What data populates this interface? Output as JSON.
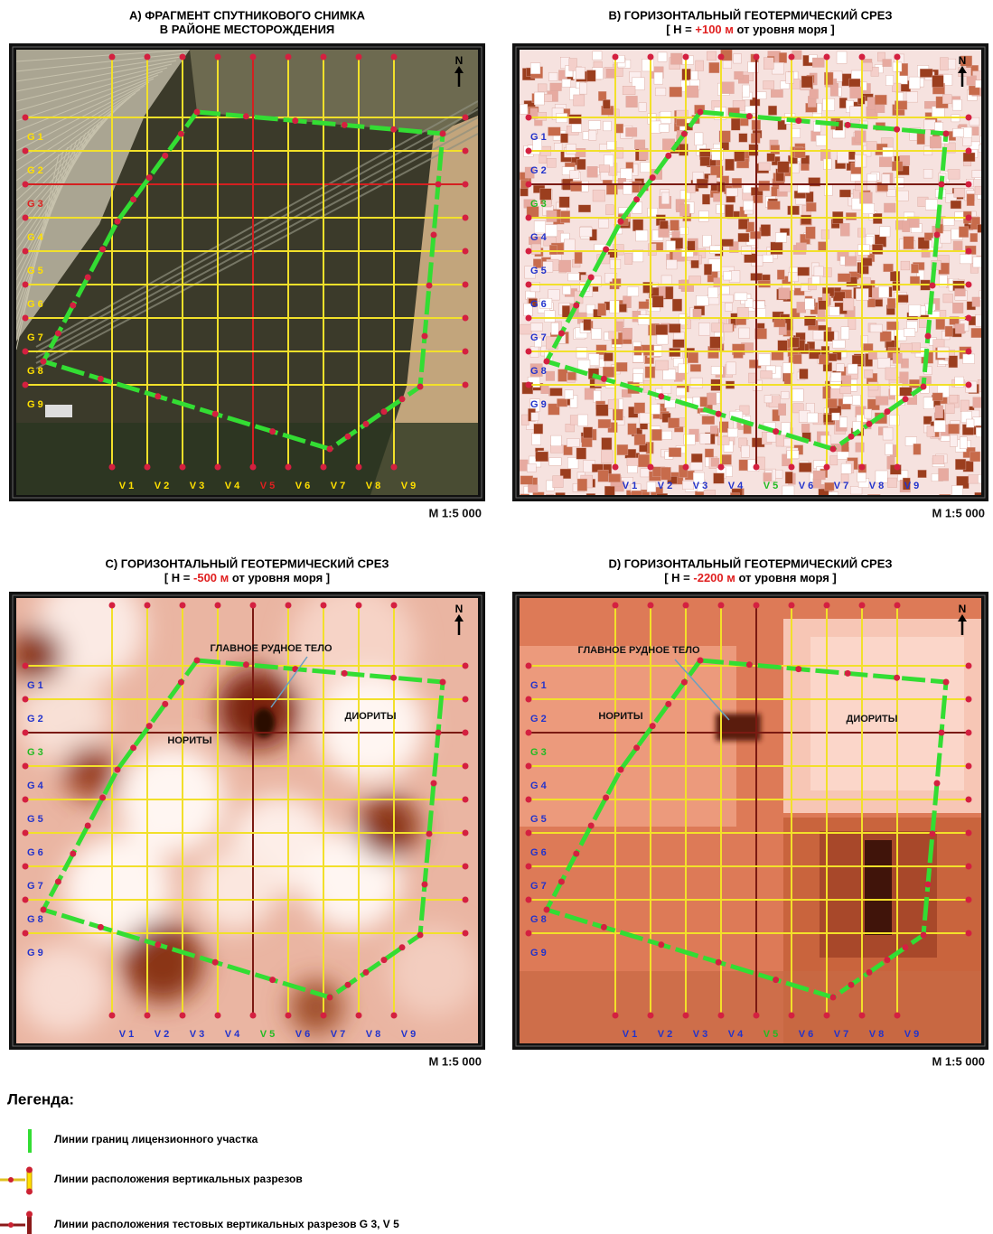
{
  "panels": [
    {
      "title": "A)  ФРАГМЕНТ СПУТНИКОВОГО СНИМКА",
      "subtitle": [
        "В РАЙОНЕ МЕСТОРОЖДЕНИЯ"
      ],
      "north": "N",
      "scale": "M 1:5 000",
      "label_color": "#ffe000",
      "highlight_color": "#e02020",
      "g_labels": [
        "G 1",
        "G 2",
        "G 3",
        "G 4",
        "G 5",
        "G 6",
        "G 7",
        "G 8",
        "G 9"
      ],
      "v_labels": [
        "V 1",
        "V 2",
        "V 3",
        "V 4",
        "V 5",
        "V 6",
        "V 7",
        "V 8",
        "V 9"
      ],
      "annotations": []
    },
    {
      "title": "B)  ГОРИЗОНТАЛЬНЫЙ ГЕОТЕРМИЧЕСКИЙ СРЕЗ",
      "subtitle": [
        "[ H = ",
        "+100 м",
        " от уровня моря ]"
      ],
      "north": "N",
      "scale": "M 1:5 000",
      "label_color": "#2233cc",
      "highlight_color": "#22bb22",
      "g_labels": [
        "G 1",
        "G 2",
        "G 3",
        "G 4",
        "G 5",
        "G 6",
        "G 7",
        "G 8",
        "G 9"
      ],
      "v_labels": [
        "V 1",
        "V 2",
        "V 3",
        "V 4",
        "V 5",
        "V 6",
        "V 7",
        "V 8",
        "V 9"
      ],
      "annotations": []
    },
    {
      "title": "C)  ГОРИЗОНТАЛЬНЫЙ ГЕОТЕРМИЧЕСКИЙ СРЕЗ",
      "subtitle": [
        "[ H = ",
        "-500 м",
        " от уровня моря ]"
      ],
      "north": "N",
      "scale": "M 1:5 000",
      "label_color": "#2233cc",
      "highlight_color": "#22bb22",
      "g_labels": [
        "G 1",
        "G 2",
        "G 3",
        "G 4",
        "G 5",
        "G 6",
        "G 7",
        "G 8",
        "G 9"
      ],
      "v_labels": [
        "V 1",
        "V 2",
        "V 3",
        "V 4",
        "V 5",
        "V 6",
        "V 7",
        "V 8",
        "V 9"
      ],
      "annotations": [
        "ГЛАВНОЕ РУДНОЕ ТЕЛО",
        "НОРИТЫ",
        "ДИОРИТЫ"
      ]
    },
    {
      "title": "D)  ГОРИЗОНТАЛЬНЫЙ ГЕОТЕРМИЧЕСКИЙ СРЕЗ",
      "subtitle": [
        "[ H = ",
        "-2200 м",
        " от уровня моря ]"
      ],
      "north": "N",
      "scale": "M 1:5 000",
      "label_color": "#2233cc",
      "highlight_color": "#22bb22",
      "g_labels": [
        "G 1",
        "G 2",
        "G 3",
        "G 4",
        "G 5",
        "G 6",
        "G 7",
        "G 8",
        "G 9"
      ],
      "v_labels": [
        "V 1",
        "V 2",
        "V 3",
        "V 4",
        "V 5",
        "V 6",
        "V 7",
        "V 8",
        "V 9"
      ],
      "annotations": [
        "ГЛАВНОЕ РУДНОЕ ТЕЛО",
        "НОРИТЫ",
        "ДИОРИТЫ"
      ]
    }
  ],
  "legend": {
    "title": "Легенда:",
    "items": [
      "Линии границ лицензионного участка",
      "Линии расположения вертикальных разрезов",
      "Линии расположения тестовых вертикальных разрезов G 3, V 5"
    ]
  }
}
